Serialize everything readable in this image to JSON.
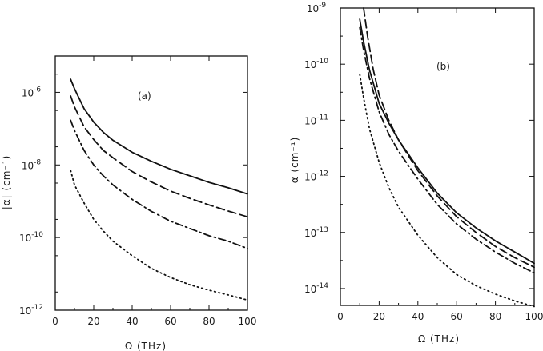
{
  "chart_data": [
    {
      "type": "line",
      "annotation": "(a)",
      "xlabel": "Ω (THz)",
      "ylabel": "|α| (cm⁻¹)",
      "xlim": [
        0,
        100
      ],
      "ylim_log10": [
        -12,
        -5
      ],
      "y_scale": "log",
      "x_ticks": [
        "0",
        "20",
        "40",
        "60",
        "80",
        "100"
      ],
      "y_ticks": [
        {
          "base": "10",
          "exp": "-6",
          "log": -6
        },
        {
          "base": "10",
          "exp": "-8",
          "log": -8
        },
        {
          "base": "10",
          "exp": "-10",
          "log": -10
        },
        {
          "base": "10",
          "exp": "-12",
          "log": -12
        }
      ],
      "series": [
        {
          "style": "solid",
          "x": [
            8,
            10,
            15,
            20,
            25,
            30,
            40,
            50,
            60,
            70,
            80,
            90,
            100
          ],
          "log10y": [
            -5.64,
            -5.9,
            -6.45,
            -6.82,
            -7.1,
            -7.32,
            -7.65,
            -7.9,
            -8.12,
            -8.3,
            -8.48,
            -8.63,
            -8.8
          ]
        },
        {
          "style": "dashed",
          "x": [
            8,
            10,
            15,
            20,
            25,
            30,
            40,
            50,
            60,
            70,
            80,
            90,
            100
          ],
          "log10y": [
            -6.1,
            -6.4,
            -6.95,
            -7.3,
            -7.6,
            -7.8,
            -8.18,
            -8.47,
            -8.72,
            -8.92,
            -9.1,
            -9.27,
            -9.43
          ]
        },
        {
          "style": "dashdot",
          "x": [
            8,
            10,
            15,
            20,
            25,
            30,
            40,
            50,
            60,
            70,
            80,
            90,
            100
          ],
          "log10y": [
            -6.77,
            -7.05,
            -7.6,
            -8.0,
            -8.3,
            -8.55,
            -8.95,
            -9.28,
            -9.55,
            -9.75,
            -9.95,
            -10.1,
            -10.3
          ]
        },
        {
          "style": "dotted",
          "x": [
            8,
            10,
            15,
            20,
            25,
            30,
            40,
            50,
            60,
            70,
            80,
            90,
            100
          ],
          "log10y": [
            -8.15,
            -8.55,
            -9.05,
            -9.5,
            -9.82,
            -10.1,
            -10.5,
            -10.85,
            -11.1,
            -11.3,
            -11.45,
            -11.58,
            -11.72
          ]
        }
      ]
    },
    {
      "type": "line",
      "annotation": "(b)",
      "xlabel": "Ω (THz)",
      "ylabel": "α (cm⁻¹)",
      "xlim": [
        0,
        100
      ],
      "ylim_log10": [
        -14.3,
        -9
      ],
      "y_scale": "log",
      "x_ticks": [
        "0",
        "20",
        "40",
        "60",
        "80",
        "100"
      ],
      "y_ticks": [
        {
          "base": "10",
          "exp": "-9",
          "log": -9
        },
        {
          "base": "10",
          "exp": "-10",
          "log": -10
        },
        {
          "base": "10",
          "exp": "-11",
          "log": -11
        },
        {
          "base": "10",
          "exp": "-12",
          "log": -12
        },
        {
          "base": "10",
          "exp": "-13",
          "log": -13
        },
        {
          "base": "10",
          "exp": "-14",
          "log": -14
        }
      ],
      "series": [
        {
          "style": "solid",
          "x": [
            10,
            12,
            15,
            20,
            25,
            30,
            40,
            50,
            60,
            70,
            80,
            90,
            100
          ],
          "log10y": [
            -9.2,
            -9.6,
            -10.1,
            -10.7,
            -11.05,
            -11.35,
            -11.85,
            -12.3,
            -12.65,
            -12.92,
            -13.15,
            -13.35,
            -13.55
          ]
        },
        {
          "style": "dashed",
          "x": [
            12,
            14,
            17,
            20,
            25,
            30,
            40,
            50,
            60,
            70,
            80,
            90,
            100
          ],
          "log10y": [
            -9.0,
            -9.5,
            -10.1,
            -10.55,
            -11.0,
            -11.35,
            -11.9,
            -12.35,
            -12.72,
            -13.0,
            -13.25,
            -13.45,
            -13.62
          ]
        },
        {
          "style": "dashdot",
          "x": [
            10,
            12,
            15,
            20,
            25,
            30,
            40,
            50,
            60,
            70,
            80,
            90,
            100
          ],
          "log10y": [
            -9.35,
            -9.75,
            -10.25,
            -10.85,
            -11.25,
            -11.55,
            -12.05,
            -12.5,
            -12.85,
            -13.12,
            -13.35,
            -13.55,
            -13.72
          ]
        },
        {
          "style": "dotted",
          "x": [
            10,
            12,
            15,
            20,
            25,
            30,
            40,
            50,
            60,
            70,
            80,
            90,
            100
          ],
          "log10y": [
            -10.18,
            -10.6,
            -11.15,
            -11.75,
            -12.2,
            -12.55,
            -13.05,
            -13.45,
            -13.75,
            -13.95,
            -14.1,
            -14.22,
            -14.32
          ]
        }
      ]
    }
  ]
}
